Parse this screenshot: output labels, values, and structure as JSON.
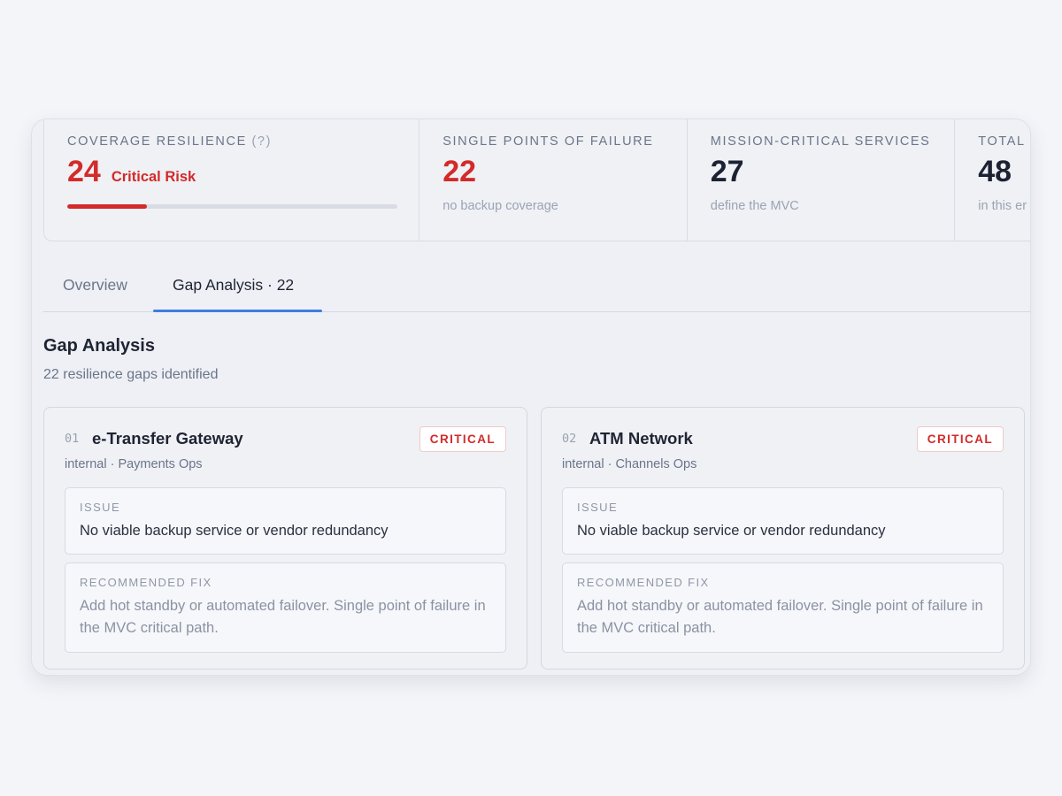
{
  "stats": [
    {
      "label": "Coverage Resilience",
      "help": "(?)",
      "value": "24",
      "risk": "Critical Risk",
      "progress_percent": 24
    },
    {
      "label": "Single Points of Failure",
      "value": "22",
      "sub": "no backup coverage"
    },
    {
      "label": "Mission-Critical Services",
      "value": "27",
      "sub": "define the MVC"
    },
    {
      "label": "Total",
      "value": "48",
      "sub": "in this er"
    }
  ],
  "tabs": [
    {
      "label": "Overview"
    },
    {
      "label": "Gap Analysis · 22"
    }
  ],
  "section": {
    "title": "Gap Analysis",
    "subtitle": "22 resilience gaps identified"
  },
  "gaps": [
    {
      "num": "01",
      "title": "e-Transfer Gateway",
      "meta": "internal · Payments Ops",
      "badge": "CRITICAL",
      "issue_label": "ISSUE",
      "issue": "No viable backup service or vendor redundancy",
      "fix_label": "RECOMMENDED FIX",
      "fix": "Add hot standby or automated failover. Single point of failure in the MVC critical path."
    },
    {
      "num": "02",
      "title": "ATM Network",
      "meta": "internal · Channels Ops",
      "badge": "CRITICAL",
      "issue_label": "ISSUE",
      "issue": "No viable backup service or vendor redundancy",
      "fix_label": "RECOMMENDED FIX",
      "fix": "Add hot standby or automated failover. Single point of failure in the MVC critical path."
    }
  ],
  "colors": {
    "critical": "#d32a2a",
    "accent": "#3d7ee0",
    "muted": "#6b7589"
  }
}
